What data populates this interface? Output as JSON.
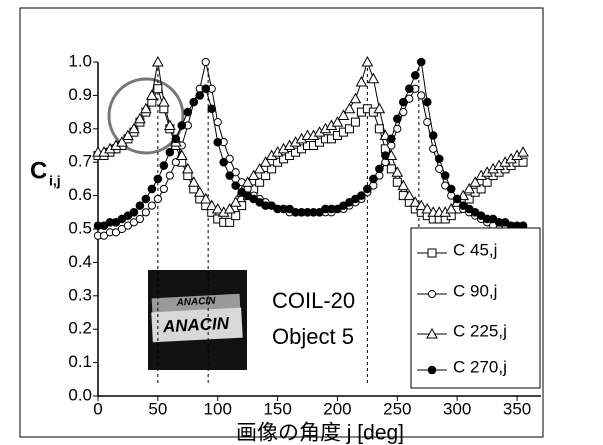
{
  "chart_data": {
    "type": "line",
    "x_label": "画像の角度 j [deg]",
    "y_label": "C",
    "y_label_sub": "i,j",
    "annotations": [
      "COIL-20",
      "Object 5"
    ],
    "image_text": "ANACIN",
    "reference_lines": [
      50,
      92,
      225,
      268
    ],
    "xlim": [
      0,
      370
    ],
    "xticks": [
      0,
      50,
      100,
      150,
      200,
      250,
      300,
      350
    ],
    "ylim": [
      0,
      1
    ],
    "yticks": [
      {
        "value": 0,
        "label": "0.0"
      },
      0.1,
      0.2,
      0.3,
      0.4,
      0.5,
      0.6,
      0.7,
      0.8,
      0.9,
      {
        "value": 1,
        "label": "1.0"
      }
    ],
    "x": [
      0,
      5,
      10,
      15,
      20,
      25,
      30,
      35,
      40,
      45,
      50,
      55,
      60,
      65,
      70,
      75,
      80,
      85,
      90,
      95,
      100,
      105,
      110,
      115,
      120,
      125,
      130,
      135,
      140,
      145,
      150,
      155,
      160,
      165,
      170,
      175,
      180,
      185,
      190,
      195,
      200,
      205,
      210,
      215,
      220,
      225,
      230,
      235,
      240,
      245,
      250,
      255,
      260,
      265,
      270,
      275,
      280,
      285,
      290,
      295,
      300,
      305,
      310,
      315,
      320,
      325,
      330,
      335,
      340,
      345,
      350,
      355
    ],
    "series": [
      {
        "name": "C 45,j",
        "color": "#000000",
        "marker": "square",
        "values": [
          0.72,
          0.72,
          0.73,
          0.74,
          0.75,
          0.77,
          0.79,
          0.82,
          0.85,
          0.88,
          0.92,
          0.86,
          0.8,
          0.75,
          0.7,
          0.66,
          0.62,
          0.59,
          0.57,
          0.55,
          0.53,
          0.52,
          0.52,
          0.54,
          0.57,
          0.6,
          0.62,
          0.64,
          0.66,
          0.68,
          0.7,
          0.71,
          0.72,
          0.73,
          0.74,
          0.75,
          0.75,
          0.76,
          0.77,
          0.77,
          0.78,
          0.79,
          0.8,
          0.82,
          0.85,
          0.86,
          0.85,
          0.8,
          0.74,
          0.68,
          0.64,
          0.6,
          0.58,
          0.56,
          0.55,
          0.54,
          0.53,
          0.53,
          0.53,
          0.54,
          0.56,
          0.58,
          0.59,
          0.61,
          0.62,
          0.64,
          0.66,
          0.67,
          0.68,
          0.69,
          0.7,
          0.7
        ]
      },
      {
        "name": "C 90,j",
        "color": "#000000",
        "marker": "circle",
        "values": [
          0.48,
          0.48,
          0.49,
          0.49,
          0.5,
          0.51,
          0.52,
          0.53,
          0.55,
          0.57,
          0.59,
          0.62,
          0.66,
          0.7,
          0.75,
          0.81,
          0.88,
          0.92,
          1.0,
          0.92,
          0.82,
          0.76,
          0.71,
          0.67,
          0.64,
          0.62,
          0.6,
          0.59,
          0.58,
          0.57,
          0.56,
          0.56,
          0.55,
          0.55,
          0.55,
          0.55,
          0.55,
          0.55,
          0.55,
          0.55,
          0.56,
          0.56,
          0.57,
          0.58,
          0.59,
          0.61,
          0.63,
          0.66,
          0.7,
          0.75,
          0.8,
          0.85,
          0.89,
          0.92,
          0.9,
          0.82,
          0.74,
          0.68,
          0.63,
          0.6,
          0.58,
          0.56,
          0.55,
          0.54,
          0.53,
          0.52,
          0.51,
          0.5,
          0.5,
          0.49,
          0.49,
          0.48
        ]
      },
      {
        "name": "C 225,j",
        "color": "#000000",
        "marker": "triangle",
        "values": [
          0.73,
          0.73,
          0.74,
          0.75,
          0.76,
          0.78,
          0.8,
          0.83,
          0.86,
          0.9,
          1.0,
          0.88,
          0.81,
          0.76,
          0.72,
          0.68,
          0.64,
          0.61,
          0.59,
          0.57,
          0.56,
          0.55,
          0.56,
          0.58,
          0.61,
          0.64,
          0.66,
          0.68,
          0.7,
          0.72,
          0.73,
          0.74,
          0.75,
          0.76,
          0.77,
          0.78,
          0.78,
          0.79,
          0.8,
          0.81,
          0.82,
          0.84,
          0.86,
          0.89,
          0.94,
          1.0,
          0.95,
          0.86,
          0.78,
          0.72,
          0.67,
          0.63,
          0.6,
          0.58,
          0.57,
          0.56,
          0.55,
          0.55,
          0.55,
          0.56,
          0.58,
          0.6,
          0.62,
          0.64,
          0.66,
          0.67,
          0.68,
          0.69,
          0.7,
          0.71,
          0.72,
          0.73
        ]
      },
      {
        "name": "C 270,j",
        "color": "#000000",
        "marker": "filled-circle",
        "values": [
          0.51,
          0.51,
          0.52,
          0.52,
          0.53,
          0.54,
          0.55,
          0.57,
          0.59,
          0.62,
          0.65,
          0.69,
          0.73,
          0.77,
          0.81,
          0.85,
          0.88,
          0.9,
          0.92,
          0.86,
          0.76,
          0.7,
          0.66,
          0.63,
          0.61,
          0.6,
          0.59,
          0.58,
          0.57,
          0.57,
          0.56,
          0.56,
          0.56,
          0.55,
          0.55,
          0.55,
          0.55,
          0.55,
          0.56,
          0.56,
          0.56,
          0.57,
          0.58,
          0.59,
          0.6,
          0.62,
          0.65,
          0.68,
          0.72,
          0.77,
          0.83,
          0.88,
          0.92,
          0.96,
          1.0,
          0.88,
          0.78,
          0.71,
          0.66,
          0.62,
          0.59,
          0.57,
          0.56,
          0.55,
          0.54,
          0.53,
          0.53,
          0.52,
          0.52,
          0.51,
          0.51,
          0.51
        ]
      }
    ]
  }
}
